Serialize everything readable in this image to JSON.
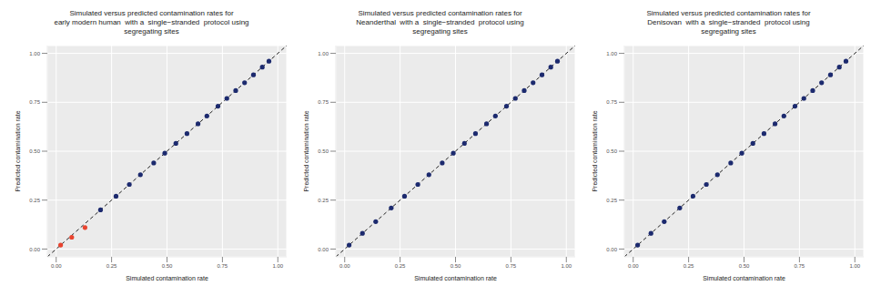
{
  "chart_data": [
    {
      "type": "scatter",
      "title": "Simulated versus predicted contamination rates for\nearly modern human  with a  single−stranded  protocol using\nsegregating sites",
      "x_label": "Simulated contamination rate",
      "y_label": "Predicted contamination rate",
      "xlim": [
        -0.04,
        1.04
      ],
      "ylim": [
        -0.04,
        1.04
      ],
      "xticks": [
        {
          "value": 0,
          "label": "0.00"
        },
        {
          "value": 0.25,
          "label": "0.25"
        },
        {
          "value": 0.5,
          "label": "0.50"
        },
        {
          "value": 0.75,
          "label": "0.75"
        },
        {
          "value": 1,
          "label": "1.00"
        }
      ],
      "yticks": [
        {
          "value": 0,
          "label": "0.00"
        },
        {
          "value": 0.25,
          "label": "0.25"
        },
        {
          "value": 0.5,
          "label": "0.50"
        },
        {
          "value": 0.75,
          "label": "0.75"
        },
        {
          "value": 1,
          "label": "1.00"
        }
      ],
      "grid": true,
      "series": [
        {
          "color": "#e8432e",
          "x": [
            0.02,
            0.07,
            0.13
          ],
          "values": [
            0.02,
            0.06,
            0.11
          ]
        },
        {
          "color": "#1c2a6e",
          "x": [
            0.2,
            0.27,
            0.33,
            0.38,
            0.44,
            0.49,
            0.54,
            0.59,
            0.64,
            0.68,
            0.73,
            0.77,
            0.81,
            0.85,
            0.89,
            0.93,
            0.96
          ],
          "values": [
            0.2,
            0.27,
            0.33,
            0.38,
            0.44,
            0.49,
            0.54,
            0.59,
            0.64,
            0.68,
            0.73,
            0.77,
            0.81,
            0.85,
            0.89,
            0.93,
            0.96
          ]
        }
      ]
    },
    {
      "type": "scatter",
      "title": "Simulated versus predicted contamination rates for\nNeanderthal  with a  single−stranded  protocol using\nsegregating sites",
      "x_label": "Simulated contamination rate",
      "y_label": "Predicted contamination rate",
      "xlim": [
        -0.04,
        1.04
      ],
      "ylim": [
        -0.04,
        1.04
      ],
      "xticks": [
        {
          "value": 0,
          "label": "0.00"
        },
        {
          "value": 0.25,
          "label": "0.25"
        },
        {
          "value": 0.5,
          "label": "0.50"
        },
        {
          "value": 0.75,
          "label": "0.75"
        },
        {
          "value": 1,
          "label": "1.00"
        }
      ],
      "yticks": [
        {
          "value": 0,
          "label": "0.00"
        },
        {
          "value": 0.25,
          "label": "0.25"
        },
        {
          "value": 0.5,
          "label": "0.50"
        },
        {
          "value": 0.75,
          "label": "0.75"
        },
        {
          "value": 1,
          "label": "1.00"
        }
      ],
      "grid": true,
      "series": [
        {
          "color": "#1c2a6e",
          "x": [
            0.02,
            0.08,
            0.14,
            0.21,
            0.27,
            0.33,
            0.38,
            0.44,
            0.49,
            0.54,
            0.59,
            0.64,
            0.68,
            0.73,
            0.77,
            0.81,
            0.85,
            0.89,
            0.93,
            0.96
          ],
          "values": [
            0.02,
            0.08,
            0.14,
            0.21,
            0.27,
            0.33,
            0.38,
            0.44,
            0.49,
            0.54,
            0.59,
            0.64,
            0.68,
            0.73,
            0.77,
            0.81,
            0.85,
            0.89,
            0.93,
            0.96
          ]
        }
      ]
    },
    {
      "type": "scatter",
      "title": "Simulated versus predicted contamination rates for\nDenisovan  with a  single−stranded  protocol using\nsegregating sites",
      "x_label": "Simulated contamination rate",
      "y_label": "Predicted contamination rate",
      "xlim": [
        -0.04,
        1.04
      ],
      "ylim": [
        -0.04,
        1.04
      ],
      "xticks": [
        {
          "value": 0,
          "label": "0.00"
        },
        {
          "value": 0.25,
          "label": "0.25"
        },
        {
          "value": 0.5,
          "label": "0.50"
        },
        {
          "value": 0.75,
          "label": "0.75"
        },
        {
          "value": 1,
          "label": "1.00"
        }
      ],
      "yticks": [
        {
          "value": 0,
          "label": "0.00"
        },
        {
          "value": 0.25,
          "label": "0.25"
        },
        {
          "value": 0.5,
          "label": "0.50"
        },
        {
          "value": 0.75,
          "label": "0.75"
        },
        {
          "value": 1,
          "label": "1.00"
        }
      ],
      "grid": true,
      "series": [
        {
          "color": "#1c2a6e",
          "x": [
            0.02,
            0.08,
            0.14,
            0.21,
            0.27,
            0.33,
            0.38,
            0.44,
            0.49,
            0.54,
            0.59,
            0.64,
            0.68,
            0.73,
            0.77,
            0.81,
            0.85,
            0.89,
            0.93,
            0.96
          ],
          "values": [
            0.02,
            0.08,
            0.14,
            0.21,
            0.27,
            0.33,
            0.38,
            0.44,
            0.49,
            0.54,
            0.59,
            0.64,
            0.68,
            0.73,
            0.77,
            0.81,
            0.85,
            0.89,
            0.93,
            0.96
          ]
        }
      ]
    }
  ]
}
